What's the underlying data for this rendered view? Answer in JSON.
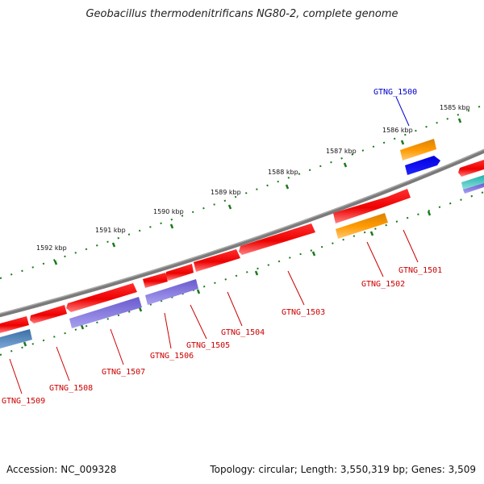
{
  "title": "Geobacillus thermodenitrificans NG80-2, complete genome",
  "accession": "Accession: NC_009328",
  "topology": "Topology: circular; Length: 3,550,319 bp; Genes: 3,509",
  "kbp_ticks": [
    {
      "label": "1585 kbp"
    },
    {
      "label": "1586 kbp"
    },
    {
      "label": "1587 kbp"
    },
    {
      "label": "1588 kbp"
    },
    {
      "label": "1589 kbp"
    },
    {
      "label": "1590 kbp"
    },
    {
      "label": "1591 kbp"
    },
    {
      "label": "1592 kbp"
    }
  ],
  "genes": [
    {
      "label": "GTNG_1500",
      "color": "#0000cc"
    },
    {
      "label": "GTNG_1501",
      "color": "#cc0000"
    },
    {
      "label": "GTNG_1502",
      "color": "#cc0000"
    },
    {
      "label": "GTNG_1503",
      "color": "#cc0000"
    },
    {
      "label": "GTNG_1504",
      "color": "#cc0000"
    },
    {
      "label": "GTNG_1505",
      "color": "#cc0000"
    },
    {
      "label": "GTNG_1506",
      "color": "#cc0000"
    },
    {
      "label": "GTNG_1507",
      "color": "#cc0000"
    },
    {
      "label": "GTNG_1508",
      "color": "#cc0000"
    },
    {
      "label": "GTNG_1509",
      "color": "#cc0000"
    }
  ],
  "colors": {
    "backbone": "#808080",
    "forward_gene": "#ff0000",
    "reverse_gene": "#7b68ee",
    "orange_gene": "#ff9900",
    "blue_gene": "#0000ff",
    "tick": "#1a7a1a"
  }
}
